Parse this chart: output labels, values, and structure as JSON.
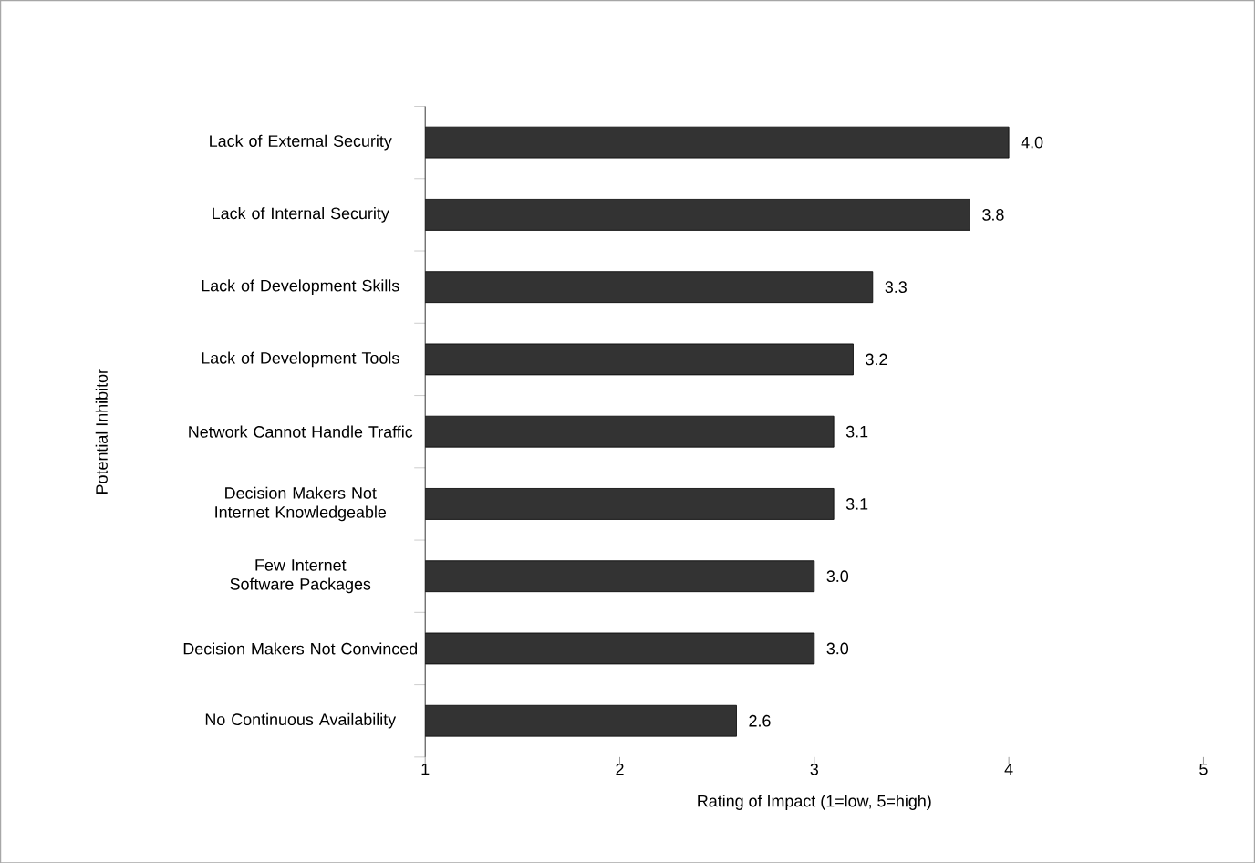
{
  "chart_data": {
    "type": "bar",
    "orientation": "horizontal",
    "categories": [
      "Lack of External Security",
      "Lack of Internal Security",
      "Lack of Development Skills",
      "Lack of Development Tools",
      "Network Cannot Handle Traffic",
      "Decision Makers Not Internet Knowledgeable",
      "Few Internet Software Packages",
      "Decision Makers Not Convinced",
      "No Continuous Availability"
    ],
    "values": [
      4.0,
      3.8,
      3.3,
      3.2,
      3.1,
      3.1,
      3.0,
      3.0,
      2.6
    ],
    "value_labels": [
      "4.0",
      "3.8",
      "3.3",
      "3.2",
      "3.1",
      "3.1",
      "3.0",
      "3.0",
      "2.6"
    ],
    "color": "#333333",
    "xlim": [
      1,
      5
    ],
    "xticks": [
      1,
      2,
      3,
      4,
      5
    ],
    "xlabel": "Rating of Impact (1=low, 5=high)",
    "ylabel": "Potential Inhibitor"
  }
}
